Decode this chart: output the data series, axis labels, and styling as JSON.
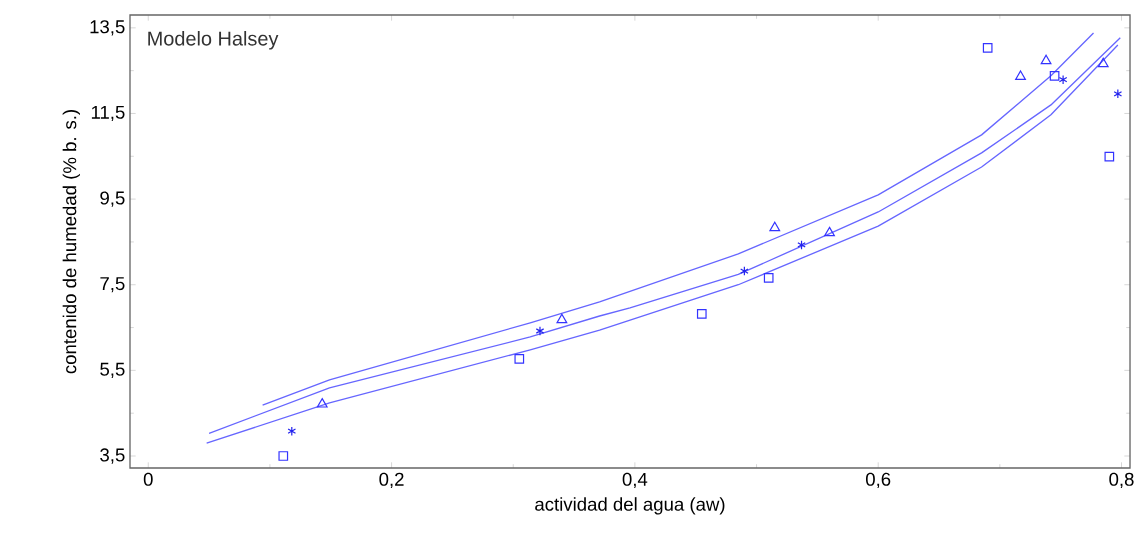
{
  "chart_data": {
    "type": "scatter",
    "xlabel": "actividad del agua (aw)",
    "ylabel": "contenido de humedad (% b. s.)",
    "annotations": [
      "Modelo Halsey"
    ],
    "xlim": [
      -0.015,
      0.807
    ],
    "ylim": [
      3.22,
      13.8
    ],
    "xticks": [
      {
        "value": 0,
        "label": "0"
      },
      {
        "value": 0.2,
        "label": "0,2"
      },
      {
        "value": 0.4,
        "label": "0,4"
      },
      {
        "value": 0.6,
        "label": "0,6"
      },
      {
        "value": 0.8,
        "label": "0,8"
      }
    ],
    "yticks": [
      {
        "value": 3.5,
        "label": "3,5"
      },
      {
        "value": 5.5,
        "label": "5,5"
      },
      {
        "value": 7.5,
        "label": "7,5"
      },
      {
        "value": 9.5,
        "label": "9,5"
      },
      {
        "value": 11.5,
        "label": "11,5"
      },
      {
        "value": 13.5,
        "label": "13,5"
      }
    ],
    "grid": false,
    "series": [
      {
        "marker": "square",
        "color": "#3333ff",
        "x": [
          0.111,
          0.305,
          0.455,
          0.51,
          0.69,
          0.745,
          0.79
        ],
        "values": [
          3.5,
          5.77,
          6.82,
          7.66,
          13.03,
          12.38,
          10.49
        ]
      },
      {
        "marker": "cross",
        "color": "#2222ee",
        "x": [
          0.118,
          0.322,
          0.49,
          0.537,
          0.752,
          0.797
        ],
        "values": [
          4.08,
          6.42,
          7.82,
          8.43,
          12.29,
          11.96
        ]
      },
      {
        "marker": "triangle",
        "color": "#3333ff",
        "x": [
          0.143,
          0.34,
          0.515,
          0.56,
          0.717,
          0.738,
          0.785
        ],
        "values": [
          4.71,
          6.68,
          8.83,
          8.71,
          12.36,
          12.73,
          12.66
        ]
      },
      {
        "type": "line",
        "marker": "none",
        "line_style": "solid",
        "color": "#6666ff",
        "x": [
          0.05,
          0.149,
          0.314,
          0.371,
          0.396,
          0.485,
          0.6,
          0.685,
          0.742,
          0.799
        ],
        "values": [
          4.03,
          5.09,
          6.28,
          6.77,
          6.96,
          7.74,
          9.2,
          10.58,
          11.7,
          13.27
        ]
      },
      {
        "type": "line",
        "marker": "none",
        "line_style": "solid",
        "color": "#6666ff",
        "x": [
          0.094,
          0.149,
          0.314,
          0.371,
          0.485,
          0.6,
          0.685,
          0.742,
          0.777
        ],
        "values": [
          4.69,
          5.28,
          6.61,
          7.1,
          8.22,
          9.6,
          11.0,
          12.38,
          13.38
        ]
      },
      {
        "type": "line",
        "marker": "none",
        "line_style": "solid",
        "color": "#6666ff",
        "x": [
          0.048,
          0.149,
          0.314,
          0.371,
          0.485,
          0.6,
          0.685,
          0.742,
          0.797
        ],
        "values": [
          3.8,
          4.74,
          5.98,
          6.44,
          7.5,
          8.87,
          10.25,
          11.47,
          13.1
        ]
      }
    ]
  }
}
